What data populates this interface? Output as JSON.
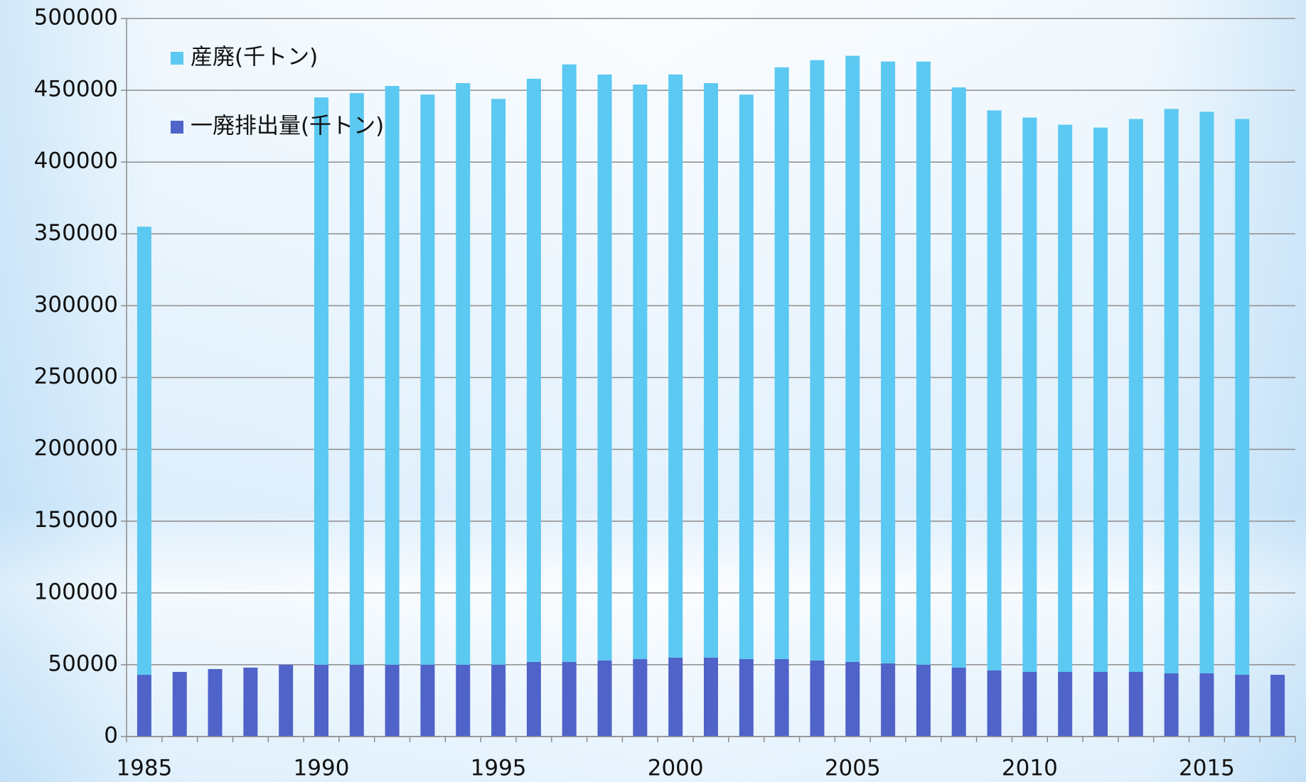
{
  "chart_data": {
    "type": "stacked_bar",
    "categories": [
      "1985",
      null,
      null,
      null,
      null,
      "1990",
      null,
      null,
      null,
      null,
      "1995",
      null,
      null,
      null,
      null,
      "2000",
      null,
      null,
      null,
      null,
      "2005",
      null,
      null,
      null,
      null,
      "2010",
      null,
      null,
      null,
      null,
      "2015",
      null,
      null
    ],
    "series": [
      {
        "name": "一廃排出量(千トン)",
        "color": "#4f63c9",
        "values": [
          43000,
          45000,
          47000,
          48000,
          50000,
          50000,
          50000,
          50000,
          50000,
          50000,
          50000,
          52000,
          52000,
          53000,
          54000,
          55000,
          55000,
          54000,
          54000,
          53000,
          52000,
          51000,
          50000,
          48000,
          46000,
          45000,
          45000,
          45000,
          45000,
          44000,
          44000,
          43000,
          43000
        ]
      },
      {
        "name": "産廃(千トン)",
        "color": "#5bc9f1",
        "values": [
          312000,
          null,
          null,
          null,
          null,
          395000,
          398000,
          403000,
          397000,
          405000,
          394000,
          406000,
          416000,
          408000,
          400000,
          406000,
          400000,
          393000,
          412000,
          418000,
          422000,
          419000,
          420000,
          404000,
          390000,
          386000,
          381000,
          379000,
          385000,
          393000,
          391000,
          387000,
          null
        ]
      }
    ],
    "legend_order": [
      1,
      0
    ],
    "ylim": [
      0,
      500000
    ],
    "yticks": [
      0,
      50000,
      100000,
      150000,
      200000,
      250000,
      300000,
      350000,
      400000,
      450000,
      500000
    ],
    "grid": true
  }
}
